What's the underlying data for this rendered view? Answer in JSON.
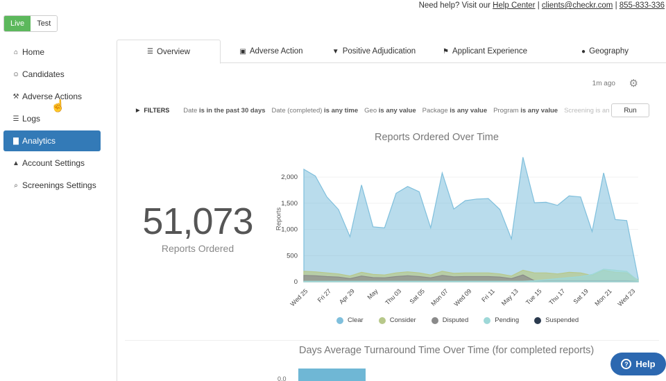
{
  "header": {
    "help_prefix": "Need help? Visit our",
    "help_center": "Help Center",
    "email": "clients@checkr.com",
    "phone": "855-833-336",
    "sep": "|"
  },
  "env": {
    "live": "Live",
    "test": "Test",
    "selected": "Live"
  },
  "sidebar": {
    "items": [
      {
        "label": "Home",
        "icon": "home-icon"
      },
      {
        "label": "Candidates",
        "icon": "users-icon"
      },
      {
        "label": "Adverse Actions",
        "icon": "gavel-icon"
      },
      {
        "label": "Logs",
        "icon": "list-icon"
      },
      {
        "label": "Analytics",
        "icon": "bar-chart-icon",
        "active": true
      },
      {
        "label": "Account Settings",
        "icon": "user-icon"
      },
      {
        "label": "Screenings Settings",
        "icon": "search-icon"
      }
    ]
  },
  "tabs": [
    {
      "label": "Overview",
      "icon": "list-icon",
      "active": true
    },
    {
      "label": "Adverse Action",
      "icon": "briefcase-icon"
    },
    {
      "label": "Positive Adjudication",
      "icon": "filter-icon"
    },
    {
      "label": "Applicant Experience",
      "icon": "flag-icon"
    },
    {
      "label": "Geography",
      "icon": "globe-icon"
    }
  ],
  "toolbar": {
    "updated": "1m ago",
    "run": "Run"
  },
  "filters": {
    "label": "FILTERS",
    "items": [
      {
        "key": "Date",
        "op": "is in the past 30 days"
      },
      {
        "key": "Date (completed)",
        "op": "is any time"
      },
      {
        "key": "Geo",
        "op": "is any value"
      },
      {
        "key": "Package",
        "op": "is any value"
      },
      {
        "key": "Program",
        "op": "is any value"
      },
      {
        "key": "Screening",
        "op": "is an"
      }
    ]
  },
  "stat": {
    "value": "51,073",
    "label": "Reports Ordered"
  },
  "chart_data": {
    "type": "area",
    "title": "Reports Ordered Over Time",
    "ylabel": "Reports",
    "ylim": [
      0,
      2400
    ],
    "yticks": [
      0,
      500,
      1000,
      1500,
      2000
    ],
    "ytick_labels": [
      "0",
      "500",
      "1,000",
      "1,500",
      "2,000"
    ],
    "xtick_labels": [
      "Wed 25",
      "Fri 27",
      "Apr 29",
      "May",
      "Thu 03",
      "Sat 05",
      "Mon 07",
      "Wed 09",
      "Fri 11",
      "May 13",
      "Tue 15",
      "Thu 17",
      "Sat 19",
      "Mon 21",
      "Wed 23"
    ],
    "legend_position": "bottom",
    "series": [
      {
        "name": "Clear",
        "color": "#7fbfdc",
        "values": [
          2150,
          2020,
          1620,
          1380,
          860,
          1850,
          1050,
          1030,
          1690,
          1820,
          1720,
          1030,
          2080,
          1390,
          1550,
          1580,
          1590,
          1380,
          820,
          2380,
          1510,
          1520,
          1460,
          1640,
          1620,
          960,
          2080,
          1190,
          1170,
          60
        ]
      },
      {
        "name": "Consider",
        "color": "#b7c88a",
        "values": [
          200,
          190,
          170,
          150,
          110,
          180,
          140,
          130,
          170,
          190,
          170,
          130,
          200,
          160,
          170,
          170,
          170,
          150,
          110,
          220,
          170,
          170,
          150,
          180,
          170,
          120,
          220,
          180,
          170,
          30
        ]
      },
      {
        "name": "Disputed",
        "color": "#8a8a8a",
        "values": [
          120,
          115,
          100,
          90,
          60,
          110,
          80,
          75,
          100,
          115,
          100,
          75,
          120,
          95,
          100,
          100,
          100,
          90,
          60,
          130,
          20,
          20,
          20,
          20,
          20,
          20,
          20,
          20,
          20,
          5
        ]
      },
      {
        "name": "Pending",
        "color": "#9ed8d8",
        "values": [
          10,
          10,
          10,
          10,
          10,
          10,
          10,
          10,
          10,
          10,
          10,
          10,
          10,
          10,
          10,
          10,
          10,
          10,
          10,
          10,
          20,
          40,
          60,
          80,
          100,
          140,
          240,
          220,
          200,
          20
        ]
      },
      {
        "name": "Suspended",
        "color": "#2b3a4e",
        "values": []
      }
    ]
  },
  "chart2": {
    "title": "Days Average Turnaround Time Over Time (for completed reports)",
    "tick": "0.0"
  },
  "help_button": {
    "label": "Help"
  }
}
